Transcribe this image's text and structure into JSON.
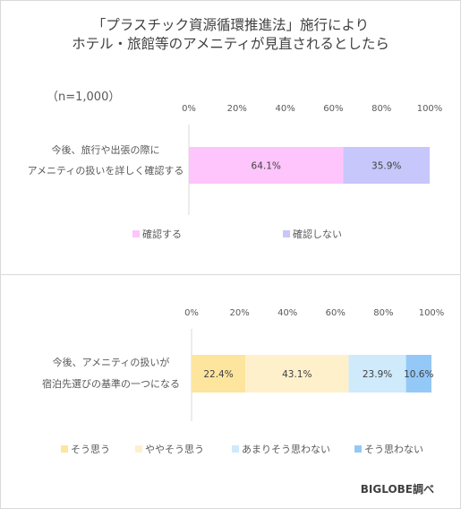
{
  "title_lines": [
    "「プラスチック資源循環推進法」施行により",
    "ホテル・旅館等のアメニティが見直されるとしたら"
  ],
  "sample_size": "（n=1,000）",
  "credit": "BIGLOBE調べ",
  "chart_data": [
    {
      "type": "bar",
      "orientation": "horizontal-stacked-100",
      "categories": [
        "今後、旅行や出張の際に\nアメニティの扱いを詳しく確認する"
      ],
      "series": [
        {
          "name": "確認する",
          "values": [
            64.1
          ],
          "color": "#fdc5fb"
        },
        {
          "name": "確認しない",
          "values": [
            35.9
          ],
          "color": "#c7c7fb"
        }
      ],
      "x_ticks": [
        "0%",
        "20%",
        "40%",
        "60%",
        "80%",
        "100%"
      ],
      "xlim": [
        0,
        100
      ],
      "data_labels": [
        "64.1%",
        "35.9%"
      ],
      "legend": "bottom"
    },
    {
      "type": "bar",
      "orientation": "horizontal-stacked-100",
      "categories": [
        "今後、アメニティの扱いが\n宿泊先選びの基準の一つになる"
      ],
      "series": [
        {
          "name": "そう思う",
          "values": [
            22.4
          ],
          "color": "#fde59e"
        },
        {
          "name": "ややそう思う",
          "values": [
            43.1
          ],
          "color": "#fff0cc"
        },
        {
          "name": "あまりそう思わない",
          "values": [
            23.9
          ],
          "color": "#cfeafb"
        },
        {
          "name": "そう思わない",
          "values": [
            10.6
          ],
          "color": "#94c8f7"
        }
      ],
      "x_ticks": [
        "0%",
        "20%",
        "40%",
        "60%",
        "80%",
        "100%"
      ],
      "xlim": [
        0,
        100
      ],
      "data_labels": [
        "22.4%",
        "43.1%",
        "23.9%",
        "10.6%"
      ],
      "legend": "bottom"
    }
  ]
}
